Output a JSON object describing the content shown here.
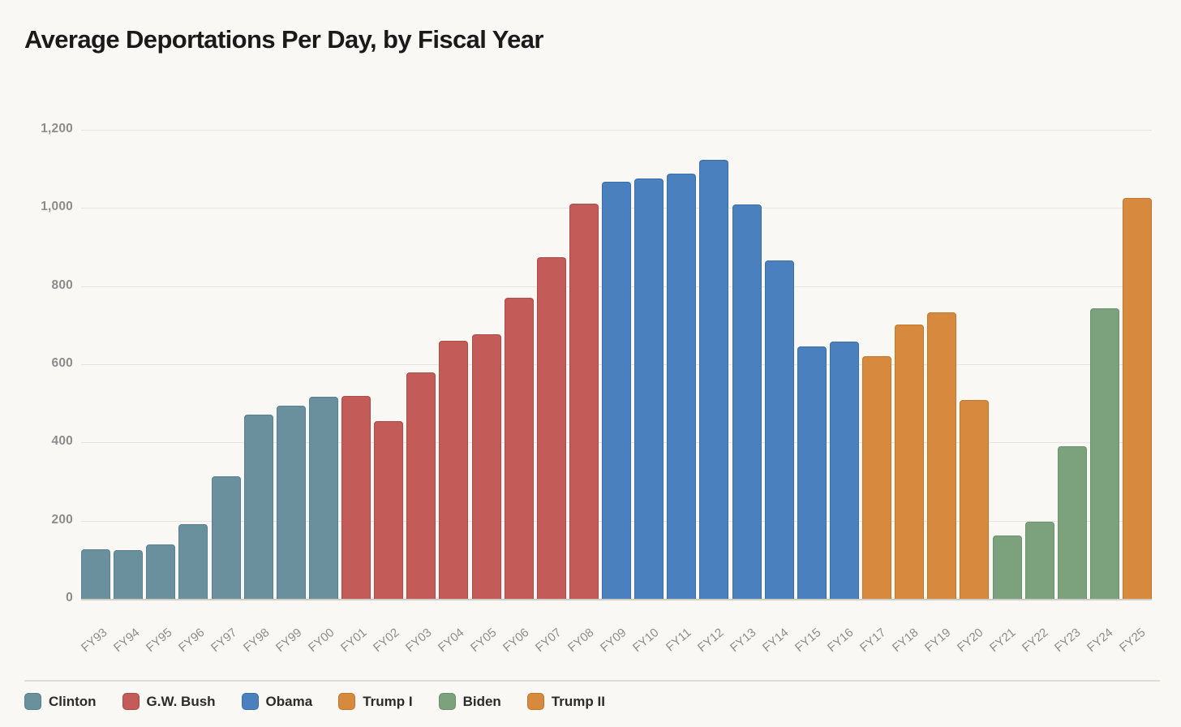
{
  "header": {
    "title": "Average Deportations Per Day, by Fiscal Year"
  },
  "theme": {
    "background": "#F9F8F4",
    "title_color": "#1A1A1A",
    "grid_color": "#E8E5E0",
    "baseline_color": "#CFCCC5",
    "axis_text_color": "#8C8C8C",
    "legend_text_color": "#2B2B2B",
    "divider_color": "#DFDCD6"
  },
  "legend": {
    "position": "bottom",
    "items": [
      {
        "label": "Clinton",
        "color": "#6A909E",
        "border": "#58808F"
      },
      {
        "label": "G.W. Bush",
        "color": "#C35B58",
        "border": "#AE4A48"
      },
      {
        "label": "Obama",
        "color": "#4A80BD",
        "border": "#3B6EA8"
      },
      {
        "label": "Trump I",
        "color": "#D78A3D",
        "border": "#C0772C"
      },
      {
        "label": "Biden",
        "color": "#7BA27D",
        "border": "#6A916C"
      },
      {
        "label": "Trump II",
        "color": "#D78A3D",
        "border": "#C0772C"
      }
    ]
  },
  "chart_data": {
    "type": "bar",
    "title": "Average Deportations Per Day, by Fiscal Year",
    "xlabel": "",
    "ylabel": "",
    "ylim": [
      0,
      1200
    ],
    "grid": true,
    "legend_position": "bottom",
    "yticks": [
      {
        "value": 0,
        "label": "0"
      },
      {
        "value": 200,
        "label": "200"
      },
      {
        "value": 400,
        "label": "400"
      },
      {
        "value": 600,
        "label": "600"
      },
      {
        "value": 800,
        "label": "800"
      },
      {
        "value": 1000,
        "label": "1,000"
      },
      {
        "value": 1200,
        "label": "1,200"
      }
    ],
    "categories": [
      "FY93",
      "FY94",
      "FY95",
      "FY96",
      "FY97",
      "FY98",
      "FY99",
      "FY00",
      "FY01",
      "FY02",
      "FY03",
      "FY04",
      "FY05",
      "FY06",
      "FY07",
      "FY08",
      "FY09",
      "FY10",
      "FY11",
      "FY12",
      "FY13",
      "FY14",
      "FY15",
      "FY16",
      "FY17",
      "FY18",
      "FY19",
      "FY20",
      "FY21",
      "FY22",
      "FY23",
      "FY24",
      "FY25"
    ],
    "values": [
      126,
      125,
      140,
      191,
      314,
      472,
      494,
      516,
      519,
      455,
      580,
      660,
      676,
      770,
      875,
      1012,
      1068,
      1076,
      1087,
      1123,
      1010,
      866,
      645,
      658,
      620,
      702,
      732,
      508,
      162,
      198,
      391,
      744,
      1025
    ],
    "groups": [
      "Clinton",
      "Clinton",
      "Clinton",
      "Clinton",
      "Clinton",
      "Clinton",
      "Clinton",
      "Clinton",
      "G.W. Bush",
      "G.W. Bush",
      "G.W. Bush",
      "G.W. Bush",
      "G.W. Bush",
      "G.W. Bush",
      "G.W. Bush",
      "G.W. Bush",
      "Obama",
      "Obama",
      "Obama",
      "Obama",
      "Obama",
      "Obama",
      "Obama",
      "Obama",
      "Trump I",
      "Trump I",
      "Trump I",
      "Trump I",
      "Biden",
      "Biden",
      "Biden",
      "Biden",
      "Trump II"
    ]
  }
}
